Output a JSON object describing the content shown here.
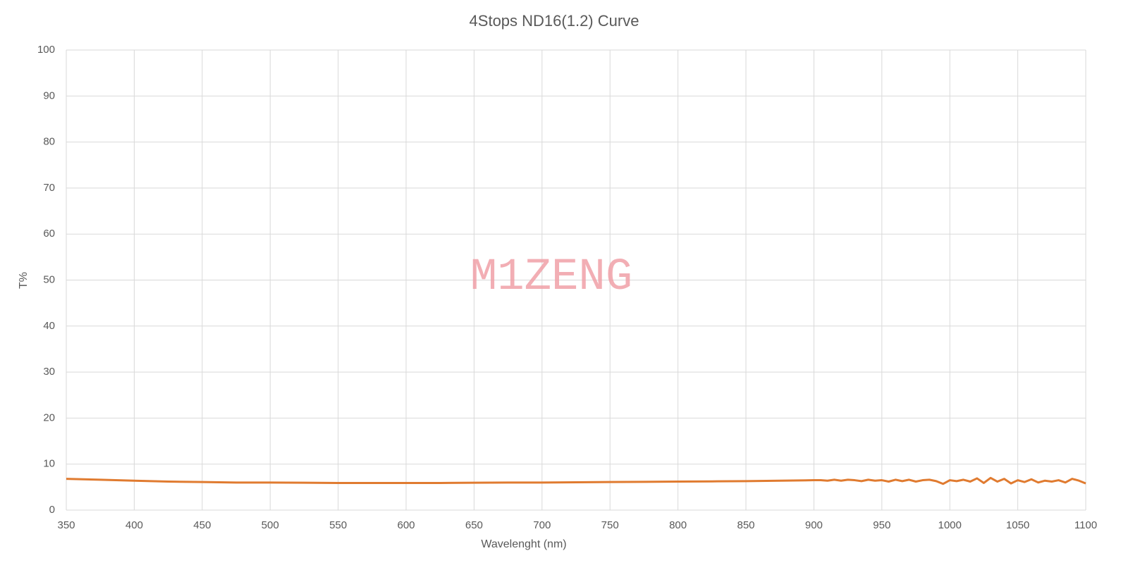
{
  "chart_data": {
    "type": "line",
    "title": "4Stops ND16(1.2)  Curve",
    "x_label": "Wavelenght (nm)",
    "y_label": "T%",
    "watermark": "M1ZENG",
    "x": [
      350,
      375,
      400,
      425,
      450,
      475,
      500,
      525,
      550,
      575,
      600,
      625,
      650,
      675,
      700,
      725,
      750,
      775,
      800,
      825,
      850,
      875,
      900,
      905,
      910,
      915,
      920,
      925,
      930,
      935,
      940,
      945,
      950,
      955,
      960,
      965,
      970,
      975,
      980,
      985,
      990,
      995,
      1000,
      1005,
      1010,
      1015,
      1020,
      1025,
      1030,
      1035,
      1040,
      1045,
      1050,
      1055,
      1060,
      1065,
      1070,
      1075,
      1080,
      1085,
      1090,
      1095,
      1100
    ],
    "series": [
      {
        "name": "T%",
        "color": "#e07b30",
        "values": [
          6.8,
          6.6,
          6.4,
          6.2,
          6.1,
          6.0,
          6.0,
          5.95,
          5.9,
          5.9,
          5.9,
          5.9,
          5.95,
          6.0,
          6.0,
          6.05,
          6.1,
          6.15,
          6.2,
          6.25,
          6.3,
          6.4,
          6.5,
          6.5,
          6.4,
          6.6,
          6.4,
          6.6,
          6.5,
          6.3,
          6.6,
          6.4,
          6.5,
          6.2,
          6.6,
          6.3,
          6.6,
          6.2,
          6.5,
          6.6,
          6.3,
          5.7,
          6.5,
          6.3,
          6.6,
          6.2,
          6.9,
          5.9,
          7.0,
          6.2,
          6.8,
          5.8,
          6.5,
          6.1,
          6.7,
          6.0,
          6.4,
          6.2,
          6.5,
          6.0,
          6.8,
          6.4,
          5.8
        ]
      }
    ],
    "xlim": [
      350,
      1100
    ],
    "xticks": [
      350,
      400,
      450,
      500,
      550,
      600,
      650,
      700,
      750,
      800,
      850,
      900,
      950,
      1000,
      1050,
      1100
    ],
    "ylim": [
      0,
      100
    ],
    "yticks": [
      0,
      10,
      20,
      30,
      40,
      50,
      60,
      70,
      80,
      90,
      100
    ],
    "grid": true
  }
}
